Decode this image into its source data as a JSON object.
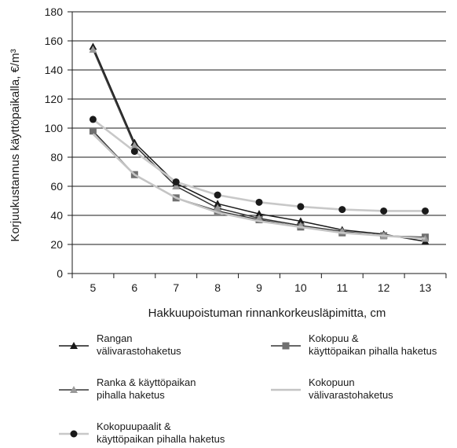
{
  "chart_data": {
    "type": "line",
    "title": "",
    "xlabel": "Hakkuupoistuman rinnankorkeusläpimitta, cm",
    "ylabel": "Korjuukustannus käyttöpaikalla, €/m³",
    "x": [
      5,
      6,
      7,
      8,
      9,
      10,
      11,
      12,
      13
    ],
    "ylim": [
      0,
      180
    ],
    "yticks": [
      0,
      20,
      40,
      60,
      80,
      100,
      120,
      140,
      160,
      180
    ],
    "grid": "horizontal",
    "legend_position": "bottom",
    "series": [
      {
        "name": "Rangan välivarastohaketus",
        "legend_lines": [
          "Rangan",
          "välivarastohaketus"
        ],
        "marker": "triangle",
        "color": "#1a1a1a",
        "marker_color": "#1a1a1a",
        "values": [
          156,
          90,
          62,
          48,
          41,
          36,
          30,
          27,
          22
        ]
      },
      {
        "name": "Kokopuu & käyttöpaikan pihalla haketus",
        "legend_lines": [
          "Kokopuu &",
          "käyttöpaikan pihalla haketus"
        ],
        "marker": "square",
        "color": "#333333",
        "marker_color": "#707070",
        "values": [
          98,
          68,
          52,
          43,
          37,
          32,
          28,
          26,
          25
        ]
      },
      {
        "name": "Ranka & käyttöpaikan pihalla haketus",
        "legend_lines": [
          "Ranka & käyttöpaikan",
          "pihalla haketus"
        ],
        "marker": "triangle",
        "color": "#333333",
        "marker_color": "#9a9a9a",
        "values": [
          154,
          88,
          60,
          45,
          38,
          33,
          29,
          26,
          24
        ]
      },
      {
        "name": "Kokopuun välivarastohaketus",
        "legend_lines": [
          "Kokopuun",
          "välivarastohaketus"
        ],
        "marker": "none",
        "color": "#c4c4c4",
        "marker_color": "#c4c4c4",
        "values": [
          96,
          68,
          52,
          42,
          36,
          32,
          28,
          26,
          24
        ]
      },
      {
        "name": "Kokopuupaalit & käyttöpaikan pihalla haketus",
        "legend_lines": [
          "Kokopuupaalit &",
          "käyttöpaikan pihalla haketus"
        ],
        "marker": "circle",
        "color": "#c8c8c8",
        "marker_color": "#1a1a1a",
        "values": [
          106,
          84,
          63,
          54,
          49,
          46,
          44,
          43,
          43
        ]
      }
    ]
  }
}
